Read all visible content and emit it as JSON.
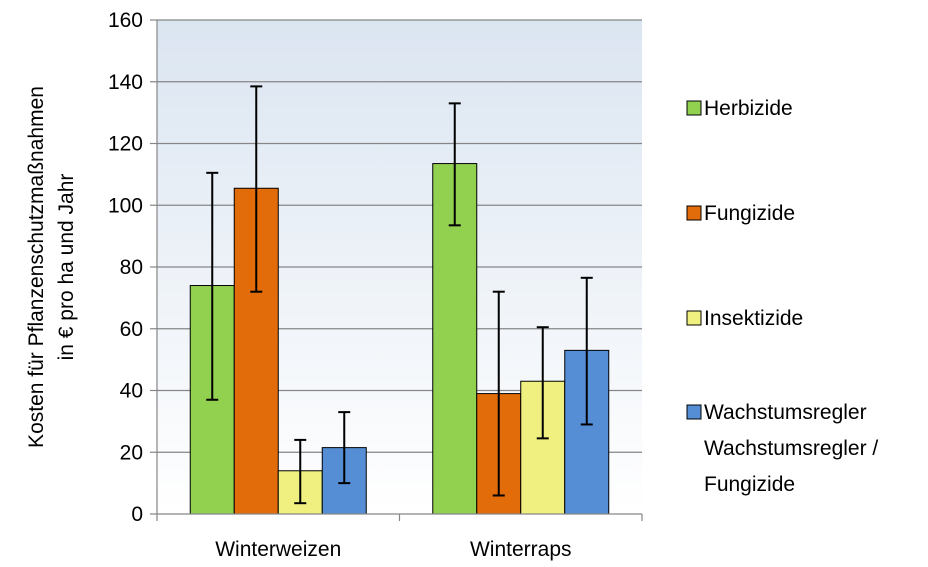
{
  "chart_data": {
    "type": "bar",
    "title": "",
    "xlabel": "",
    "ylabel": [
      "Kosten für Pflanzenschutzmaßnahmen",
      "in € pro ha und Jahr"
    ],
    "categories": [
      "Winterweizen",
      "Winterraps"
    ],
    "ylim": [
      0,
      160
    ],
    "yticks": [
      "0",
      "20",
      "40",
      "60",
      "80",
      "100",
      "120",
      "140",
      "160"
    ],
    "grid": true,
    "legend_position": "right",
    "plot_background": "light blue gradient",
    "series": [
      {
        "name": "Herbizide",
        "color": "#92d050",
        "values": [
          74,
          113.5
        ],
        "err_low": [
          37,
          93.5
        ],
        "err_high": [
          110.5,
          133
        ]
      },
      {
        "name": "Fungizide",
        "color": "#e36c0a",
        "values": [
          105.5,
          39
        ],
        "err_low": [
          72,
          6
        ],
        "err_high": [
          138.5,
          72
        ]
      },
      {
        "name": "Insektizide",
        "color": "#f0f080",
        "values": [
          14,
          43
        ],
        "err_low": [
          3.5,
          24.5
        ],
        "err_high": [
          24,
          60.5
        ]
      },
      {
        "name": [
          "Wachstumsregler",
          "Wachstumsregler /",
          "Fungizide"
        ],
        "color": "#558ed5",
        "values": [
          21.5,
          53
        ],
        "err_low": [
          10,
          29
        ],
        "err_high": [
          33,
          76.5
        ]
      }
    ]
  }
}
